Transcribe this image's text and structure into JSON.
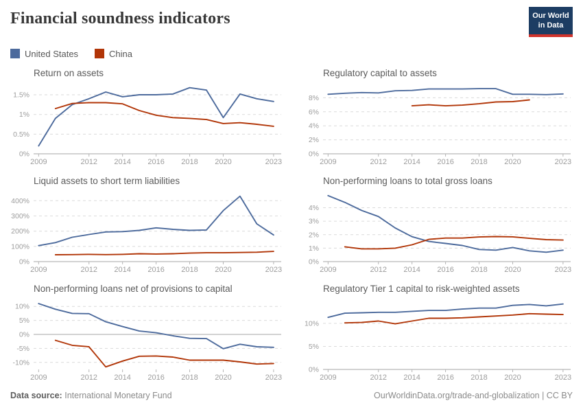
{
  "header": {
    "title": "Financial soundness indicators",
    "logo": {
      "line1": "Our World",
      "line2": "in Data"
    }
  },
  "colors": {
    "us_blue": "#4c6a9c",
    "china_red": "#b13507",
    "logo_navy": "#1d3d63",
    "logo_red": "#d1342c",
    "gridline": "#dadada",
    "baseline": "#a6a6a6",
    "tick_text": "#9c9c9c"
  },
  "legend": {
    "items": [
      {
        "label": "United States",
        "color": "#4c6a9c"
      },
      {
        "label": "China",
        "color": "#b13507"
      }
    ]
  },
  "footer": {
    "source_label": "Data source:",
    "source_value": "International Monetary Fund",
    "link": "OurWorldinData.org/trade-and-globalization | CC BY"
  },
  "chart_data": [
    {
      "type": "line",
      "title": "Return on assets",
      "x": [
        2009,
        2010,
        2011,
        2012,
        2013,
        2014,
        2015,
        2016,
        2017,
        2018,
        2019,
        2020,
        2021,
        2022,
        2023
      ],
      "xticks": [
        2009,
        2012,
        2014,
        2016,
        2018,
        2020,
        2023
      ],
      "xdomain": [
        2008.7,
        2023.25
      ],
      "ylim": [
        0,
        1.78
      ],
      "yticks": [
        {
          "v": 0,
          "label": "0%"
        },
        {
          "v": 0.5,
          "label": "0.5%"
        },
        {
          "v": 1,
          "label": "1%"
        },
        {
          "v": 1.5,
          "label": "1.5%"
        }
      ],
      "series": [
        {
          "name": "United States",
          "color": "#4c6a9c",
          "values": [
            0.2,
            0.9,
            1.25,
            1.4,
            1.57,
            1.45,
            1.5,
            1.5,
            1.52,
            1.68,
            1.62,
            0.92,
            1.52,
            1.4,
            1.33
          ]
        },
        {
          "name": "China",
          "color": "#b13507",
          "values": [
            null,
            1.15,
            1.28,
            1.3,
            1.3,
            1.27,
            1.1,
            0.98,
            0.92,
            0.9,
            0.87,
            0.77,
            0.79,
            0.75,
            0.7
          ]
        }
      ]
    },
    {
      "type": "line",
      "title": "Regulatory capital to assets",
      "x": [
        2009,
        2010,
        2011,
        2012,
        2013,
        2014,
        2015,
        2016,
        2017,
        2018,
        2019,
        2020,
        2021,
        2022,
        2023
      ],
      "xticks": [
        2009,
        2012,
        2014,
        2016,
        2018,
        2020,
        2023
      ],
      "xdomain": [
        2008.7,
        2023.25
      ],
      "ylim": [
        0,
        10
      ],
      "yticks": [
        {
          "v": 0,
          "label": "0%"
        },
        {
          "v": 2,
          "label": "2%"
        },
        {
          "v": 4,
          "label": "4%"
        },
        {
          "v": 6,
          "label": "6%"
        },
        {
          "v": 8,
          "label": "8%"
        }
      ],
      "series": [
        {
          "name": "United States",
          "color": "#4c6a9c",
          "values": [
            8.5,
            8.65,
            8.75,
            8.7,
            9.0,
            9.05,
            9.25,
            9.25,
            9.25,
            9.3,
            9.3,
            8.5,
            8.5,
            8.45,
            8.55
          ]
        },
        {
          "name": "China",
          "color": "#b13507",
          "values": [
            null,
            null,
            null,
            null,
            null,
            6.85,
            7.0,
            6.85,
            6.95,
            7.15,
            7.4,
            7.45,
            7.7,
            null,
            null
          ]
        }
      ]
    },
    {
      "type": "line",
      "title": "Liquid assets to short term liabilities",
      "x": [
        2009,
        2010,
        2011,
        2012,
        2013,
        2014,
        2015,
        2016,
        2017,
        2018,
        2019,
        2020,
        2021,
        2022,
        2023
      ],
      "xticks": [
        2009,
        2012,
        2014,
        2016,
        2018,
        2020,
        2023
      ],
      "xdomain": [
        2008.7,
        2023.25
      ],
      "ylim": [
        0,
        460
      ],
      "yticks": [
        {
          "v": 0,
          "label": "0%"
        },
        {
          "v": 100,
          "label": "100%"
        },
        {
          "v": 200,
          "label": "200%"
        },
        {
          "v": 300,
          "label": "300%"
        },
        {
          "v": 400,
          "label": "400%"
        }
      ],
      "series": [
        {
          "name": "United States",
          "color": "#4c6a9c",
          "values": [
            105,
            125,
            160,
            178,
            195,
            197,
            205,
            222,
            212,
            205,
            208,
            335,
            430,
            248,
            175
          ]
        },
        {
          "name": "China",
          "color": "#b13507",
          "values": [
            null,
            45,
            46,
            48,
            46,
            48,
            52,
            50,
            52,
            56,
            58,
            58,
            60,
            62,
            67
          ]
        }
      ]
    },
    {
      "type": "line",
      "title": "Non-performing loans to total gross loans",
      "x": [
        2009,
        2010,
        2011,
        2012,
        2013,
        2014,
        2015,
        2016,
        2017,
        2018,
        2019,
        2020,
        2021,
        2022,
        2023
      ],
      "xticks": [
        2009,
        2012,
        2014,
        2016,
        2018,
        2020,
        2023
      ],
      "xdomain": [
        2008.7,
        2023.25
      ],
      "ylim": [
        0,
        5.2
      ],
      "yticks": [
        {
          "v": 0,
          "label": "0%"
        },
        {
          "v": 1,
          "label": "1%"
        },
        {
          "v": 2,
          "label": "2%"
        },
        {
          "v": 3,
          "label": "3%"
        },
        {
          "v": 4,
          "label": "4%"
        }
      ],
      "series": [
        {
          "name": "United States",
          "color": "#4c6a9c",
          "values": [
            4.9,
            4.4,
            3.8,
            3.35,
            2.5,
            1.85,
            1.5,
            1.35,
            1.2,
            0.9,
            0.85,
            1.05,
            0.8,
            0.7,
            0.85
          ]
        },
        {
          "name": "China",
          "color": "#b13507",
          "values": [
            null,
            1.1,
            0.95,
            0.95,
            1.0,
            1.25,
            1.65,
            1.75,
            1.75,
            1.83,
            1.86,
            1.84,
            1.73,
            1.63,
            1.6
          ]
        }
      ]
    },
    {
      "type": "line",
      "title": "Non-performing loans net of provisions to capital",
      "x": [
        2009,
        2010,
        2011,
        2012,
        2013,
        2014,
        2015,
        2016,
        2017,
        2018,
        2019,
        2020,
        2021,
        2022,
        2023
      ],
      "xticks": [
        2009,
        2012,
        2014,
        2016,
        2018,
        2020,
        2023
      ],
      "xdomain": [
        2008.7,
        2023.25
      ],
      "ylim": [
        -12.5,
        12.5
      ],
      "yticks": [
        {
          "v": -10,
          "label": "-10%"
        },
        {
          "v": -5,
          "label": "-5%"
        },
        {
          "v": 0,
          "label": "0%"
        },
        {
          "v": 5,
          "label": "5%"
        },
        {
          "v": 10,
          "label": "10%"
        }
      ],
      "series": [
        {
          "name": "United States",
          "color": "#4c6a9c",
          "values": [
            11,
            9,
            7.5,
            7.4,
            4.5,
            2.8,
            1.2,
            0.6,
            -0.5,
            -1.4,
            -1.5,
            -5.1,
            -3.5,
            -4.4,
            -4.6
          ]
        },
        {
          "name": "China",
          "color": "#b13507",
          "values": [
            null,
            -2.1,
            -3.9,
            -4.4,
            -11.6,
            -9.5,
            -7.8,
            -7.7,
            -8.1,
            -9.2,
            -9.2,
            -9.2,
            -9.8,
            -10.6,
            -10.4
          ]
        }
      ]
    },
    {
      "type": "line",
      "title": "Regulatory Tier 1 capital to risk-weighted assets",
      "x": [
        2009,
        2010,
        2011,
        2012,
        2013,
        2014,
        2015,
        2016,
        2017,
        2018,
        2019,
        2020,
        2021,
        2022,
        2023
      ],
      "xticks": [
        2009,
        2012,
        2014,
        2016,
        2018,
        2020,
        2023
      ],
      "xdomain": [
        2008.7,
        2023.25
      ],
      "ylim": [
        0,
        15.2
      ],
      "yticks": [
        {
          "v": 0,
          "label": "0%"
        },
        {
          "v": 5,
          "label": "5%"
        },
        {
          "v": 10,
          "label": "10%"
        }
      ],
      "series": [
        {
          "name": "United States",
          "color": "#4c6a9c",
          "values": [
            11.3,
            12.2,
            12.3,
            12.4,
            12.4,
            12.6,
            12.8,
            12.8,
            13.1,
            13.3,
            13.3,
            13.9,
            14.1,
            13.8,
            14.2
          ]
        },
        {
          "name": "China",
          "color": "#b13507",
          "values": [
            null,
            10.1,
            10.2,
            10.5,
            9.9,
            10.5,
            11.1,
            11.1,
            11.2,
            11.4,
            11.6,
            11.8,
            12.1,
            12.0,
            11.9
          ]
        }
      ]
    }
  ]
}
